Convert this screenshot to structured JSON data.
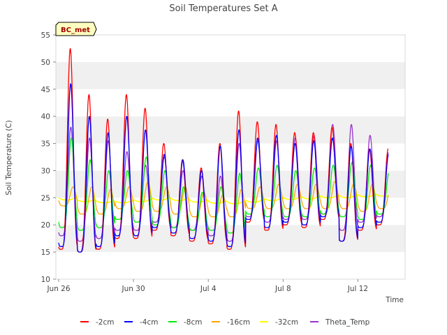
{
  "chart_data": {
    "type": "line",
    "title": "Soil Temperatures Set A",
    "badge": "BC_met",
    "xlabel": "Time",
    "ylabel": "Soil Temperature (C)",
    "ylim": [
      10,
      55
    ],
    "yticks": [
      10,
      15,
      20,
      25,
      30,
      35,
      40,
      45,
      50,
      55
    ],
    "xlim": [
      "2024-06-26",
      "2024-07-14"
    ],
    "xticks": [
      {
        "date": "2024-06-26",
        "label": "Jun 26"
      },
      {
        "date": "2024-06-30",
        "label": "Jun 30"
      },
      {
        "date": "2024-07-04",
        "label": "Jul 4"
      },
      {
        "date": "2024-07-08",
        "label": "Jul 8"
      },
      {
        "date": "2024-07-12",
        "label": "Jul 12"
      }
    ],
    "grid": "horizontal bands",
    "legend_position": "bottom",
    "data_start": "2024-06-26",
    "data_end": "2024-07-13",
    "series": [
      {
        "name": "-2cm",
        "color": "#ff0000",
        "daily_min": [
          15.5,
          15,
          15.5,
          17.5,
          17.5,
          19,
          18,
          17,
          16.5,
          15.5,
          20.5,
          19,
          20,
          19.5,
          21,
          17,
          19,
          20
        ],
        "daily_max": [
          52.5,
          44,
          39.5,
          44,
          41.5,
          35,
          32,
          30.5,
          35,
          41,
          39,
          38.5,
          37,
          37,
          38,
          35,
          34,
          34
        ]
      },
      {
        "name": "-4cm",
        "color": "#0000ff",
        "daily_min": [
          16,
          15,
          16,
          18,
          18,
          19.5,
          18.5,
          17.5,
          17,
          16,
          21,
          19.5,
          20.5,
          20,
          21.5,
          17,
          19.5,
          20.5
        ],
        "daily_max": [
          46,
          40,
          37,
          40,
          37.5,
          33,
          32,
          30,
          34.5,
          37.5,
          36,
          36.5,
          35,
          35.5,
          36,
          34.5,
          34,
          33
        ]
      },
      {
        "name": "-8cm",
        "color": "#00ee00",
        "daily_min": [
          19.5,
          19,
          19.5,
          21,
          20.5,
          20,
          19.5,
          19,
          19,
          18.5,
          22,
          21.5,
          21.5,
          21.5,
          22,
          21.5,
          21,
          22
        ],
        "daily_max": [
          36,
          32,
          30,
          30,
          32.5,
          30,
          27,
          26,
          27,
          29.5,
          30.5,
          31,
          30,
          30.5,
          31,
          31.5,
          31,
          30
        ]
      },
      {
        "name": "-16cm",
        "color": "#ffa500",
        "daily_min": [
          23.5,
          22,
          22,
          23,
          22.5,
          22.5,
          22,
          21.5,
          21.5,
          21.5,
          23,
          23,
          23,
          23,
          23,
          23,
          22.5,
          23
        ],
        "daily_max": [
          27,
          27,
          26.5,
          27,
          28,
          27,
          27,
          26,
          25.5,
          26.5,
          27,
          27.5,
          27.5,
          27.5,
          28,
          27.5,
          27.5,
          27
        ]
      },
      {
        "name": "-32cm",
        "color": "#ffff00",
        "daily_min": [
          24.6,
          24.3,
          24.1,
          24.1,
          24.3,
          24.6,
          24.5,
          24.2,
          24,
          23.9,
          24.2,
          24.5,
          24.7,
          24.8,
          25,
          25,
          25.2,
          25.3
        ],
        "daily_max": [
          25,
          24.6,
          24.4,
          24.4,
          24.7,
          25,
          24.9,
          24.6,
          24.4,
          24.3,
          24.6,
          24.9,
          25.1,
          25.2,
          25.4,
          25.5,
          25.6,
          25.6
        ]
      },
      {
        "name": "Theta_Temp",
        "color": "#9932cc",
        "daily_min": [
          18,
          17,
          17.5,
          19,
          19,
          20.5,
          19.5,
          19,
          18,
          17,
          21.5,
          20.5,
          21,
          21,
          22,
          19,
          20.5,
          21.5
        ],
        "daily_max": [
          38,
          36,
          35.5,
          33.5,
          31,
          32.5,
          30,
          29,
          29,
          35,
          35.5,
          35.5,
          36,
          36.5,
          38.5,
          38.5,
          36.5,
          33.5
        ]
      }
    ]
  }
}
